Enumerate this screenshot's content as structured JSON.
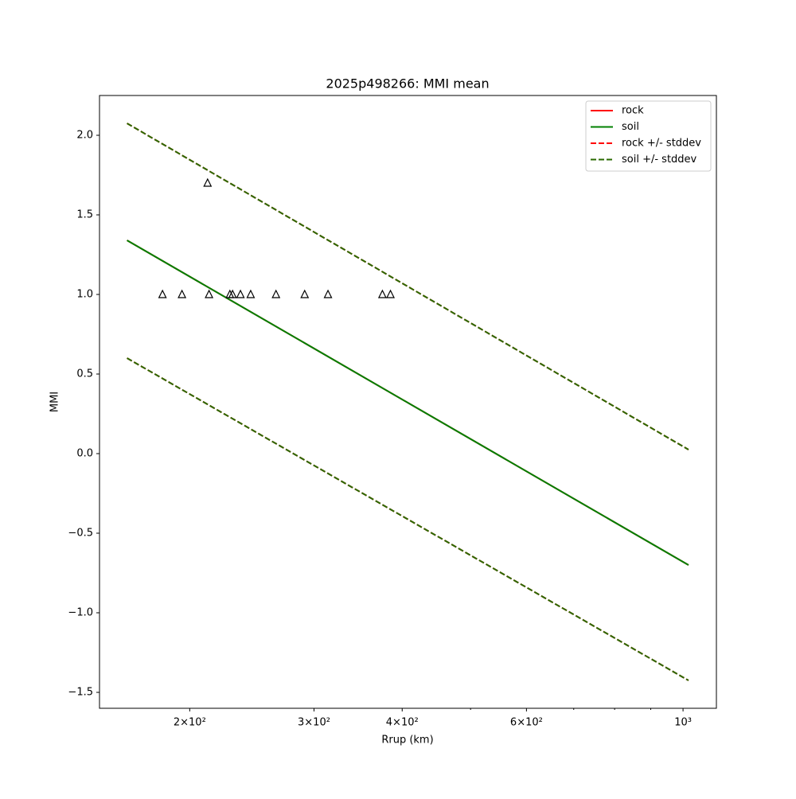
{
  "chart_data": {
    "type": "line",
    "title": "2025p498266: MMI mean",
    "x_label": "Rrup (km)",
    "y_label": "MMI",
    "xscale": "log",
    "xlim": [
      149,
      1115
    ],
    "ylim": [
      -1.6,
      2.25
    ],
    "xticks": [
      {
        "value": 200,
        "label": "2×10²"
      },
      {
        "value": 300,
        "label": "3×10²"
      },
      {
        "value": 400,
        "label": "4×10²"
      },
      {
        "value": 600,
        "label": "6×10²"
      },
      {
        "value": 1000,
        "label": "10³"
      }
    ],
    "xticks_minor": [
      500,
      700,
      800,
      900
    ],
    "yticks": [
      {
        "value": -1.5,
        "label": "−1.5"
      },
      {
        "value": -1.0,
        "label": "−1.0"
      },
      {
        "value": -0.5,
        "label": "−0.5"
      },
      {
        "value": 0.0,
        "label": "0.0"
      },
      {
        "value": 0.5,
        "label": "0.5"
      },
      {
        "value": 1.0,
        "label": "1.0"
      },
      {
        "value": 1.5,
        "label": "1.5"
      },
      {
        "value": 2.0,
        "label": "2.0"
      }
    ],
    "legend": "upper right",
    "series": [
      {
        "name": "rock",
        "color": "#ff0000",
        "dashed": false,
        "x": [
          163,
          1018
        ],
        "values": [
          1.34,
          -0.7
        ]
      },
      {
        "name": "soil",
        "color": "#008000",
        "dashed": false,
        "x": [
          163,
          1018
        ],
        "values": [
          1.34,
          -0.7
        ]
      },
      {
        "name": "rock +/- stddev",
        "color": "#ff0000",
        "dashed": true,
        "x": [
          163,
          1018
        ],
        "values": [
          2.075,
          0.025
        ],
        "lower": [
          0.6,
          -1.425
        ]
      },
      {
        "name": "soil +/- stddev",
        "color": "#2a6a00",
        "dashed": true,
        "x": [
          163,
          1018
        ],
        "values": [
          2.075,
          0.025
        ],
        "lower": [
          0.6,
          -1.425
        ]
      }
    ],
    "points": {
      "color": "#000000",
      "marker": "triangle",
      "x": [
        183,
        195,
        212,
        213,
        228,
        230,
        236,
        244,
        265,
        291,
        314,
        375,
        385
      ],
      "values": [
        1.0,
        1.0,
        1.7,
        1.0,
        1.0,
        1.0,
        1.0,
        1.0,
        1.0,
        1.0,
        1.0,
        1.0,
        1.0
      ]
    }
  }
}
